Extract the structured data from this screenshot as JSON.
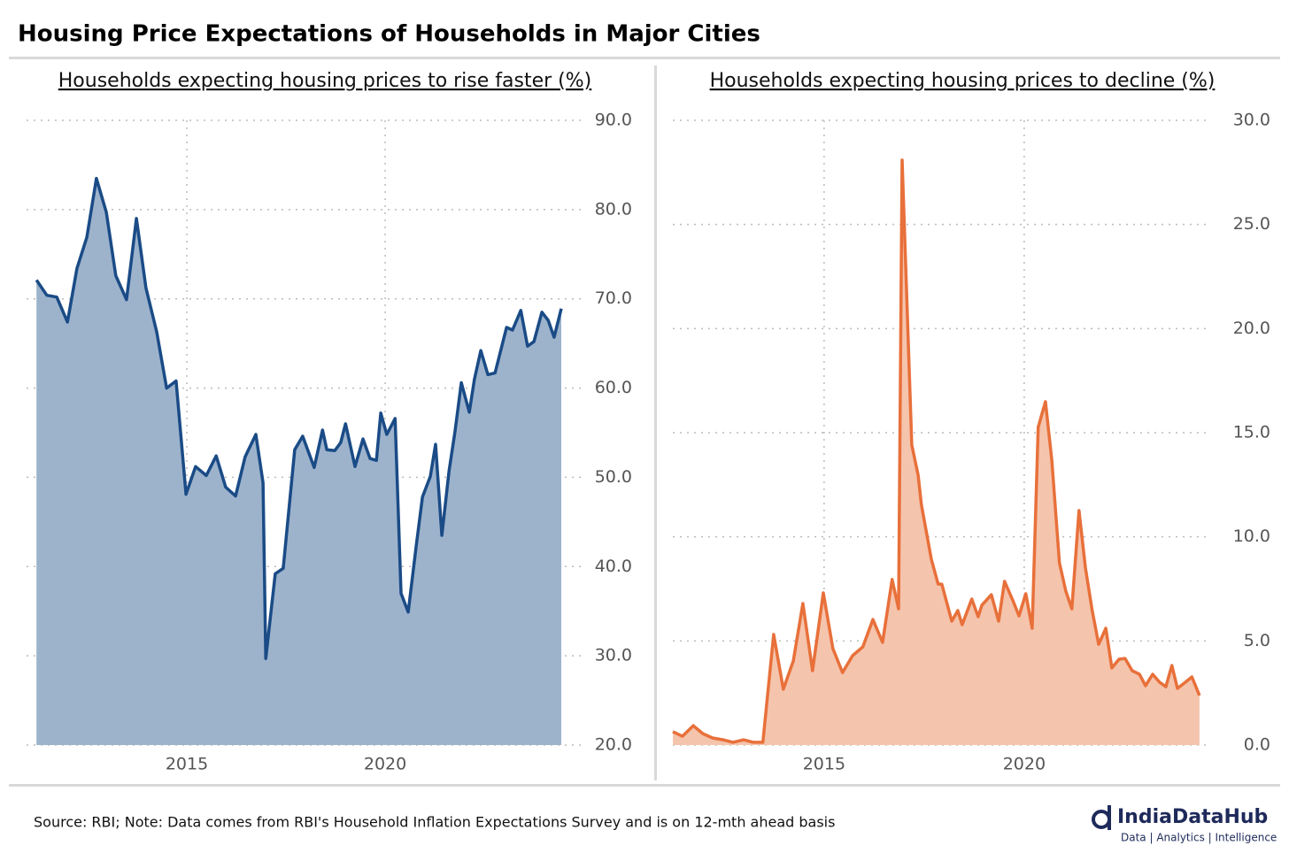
{
  "title": "Housing Price Expectations of Households in Major Cities",
  "source": "Source: RBI; Note: Data comes from RBI's Household Inflation Expectations Survey and is on 12-mth ahead basis",
  "logo": {
    "name": "IndiaDataHub",
    "tagline": "Data | Analytics | Intelligence"
  },
  "chart_data": [
    {
      "type": "area",
      "title": "Households expecting housing prices to rise faster (%)",
      "color": "#1a4b86",
      "fill_color": "#9db3cc",
      "xlim": [
        2010.96,
        2025.02
      ],
      "xticks": [
        2015,
        2020
      ],
      "ylim": [
        20,
        90
      ],
      "yticks": [
        {
          "value": 20,
          "label": "20.0"
        },
        {
          "value": 30,
          "label": "30.0"
        },
        {
          "value": 40,
          "label": "40.0"
        },
        {
          "value": 50,
          "label": "50.0"
        },
        {
          "value": 60,
          "label": "60.0"
        },
        {
          "value": 70,
          "label": "70.0"
        },
        {
          "value": 80,
          "label": "80.0"
        },
        {
          "value": 90,
          "label": "90.0"
        }
      ],
      "grid": true,
      "x": [
        2011.21,
        2011.47,
        2011.72,
        2011.99,
        2012.23,
        2012.48,
        2012.72,
        2012.97,
        2013.21,
        2013.48,
        2013.73,
        2013.97,
        2014.24,
        2014.49,
        2014.73,
        2014.98,
        2015.22,
        2015.49,
        2015.74,
        2015.98,
        2016.23,
        2016.47,
        2016.74,
        2016.92,
        2016.99,
        2017.23,
        2017.43,
        2017.72,
        2017.92,
        2018.21,
        2018.42,
        2018.53,
        2018.73,
        2018.88,
        2019.0,
        2019.24,
        2019.44,
        2019.62,
        2019.78,
        2019.89,
        2020.04,
        2020.25,
        2020.4,
        2020.58,
        2020.78,
        2020.94,
        2021.14,
        2021.27,
        2021.43,
        2021.61,
        2021.76,
        2021.92,
        2022.12,
        2022.25,
        2022.41,
        2022.59,
        2022.77,
        2023.06,
        2023.21,
        2023.42,
        2023.59,
        2023.75,
        2023.95,
        2024.11,
        2024.26,
        2024.44
      ],
      "values": [
        72.1,
        70.4,
        70.2,
        67.4,
        73.4,
        76.9,
        83.5,
        79.7,
        72.6,
        69.9,
        79.0,
        71.2,
        66.3,
        60.0,
        60.8,
        48.1,
        51.2,
        50.2,
        52.4,
        48.9,
        47.9,
        52.3,
        54.8,
        49.4,
        29.7,
        39.2,
        39.8,
        53.1,
        54.6,
        51.1,
        55.3,
        53.1,
        53.0,
        53.9,
        56.0,
        51.2,
        54.3,
        52.1,
        51.9,
        57.2,
        54.8,
        56.6,
        37.0,
        34.9,
        42.2,
        47.8,
        50.1,
        53.7,
        43.5,
        50.7,
        55.1,
        60.6,
        57.3,
        61.0,
        64.2,
        61.5,
        61.7,
        66.8,
        66.5,
        68.7,
        64.7,
        65.2,
        68.5,
        67.6,
        65.7,
        68.9
      ]
    },
    {
      "type": "area",
      "title": "Households expecting housing prices to decline (%)",
      "color": "#e8703a",
      "fill_color": "#f5c4ad",
      "xlim": [
        2011.22,
        2024.67
      ],
      "xticks": [
        2015,
        2020
      ],
      "ylim": [
        0,
        30
      ],
      "yticks": [
        {
          "value": 0,
          "label": "0.0"
        },
        {
          "value": 5,
          "label": "5.0"
        },
        {
          "value": 10,
          "label": "10.0"
        },
        {
          "value": 15,
          "label": "15.0"
        },
        {
          "value": 20,
          "label": "20.0"
        },
        {
          "value": 25,
          "label": "25.0"
        },
        {
          "value": 30,
          "label": "30.0"
        }
      ],
      "grid": true,
      "x": [
        2011.22,
        2011.46,
        2011.73,
        2011.97,
        2012.21,
        2012.48,
        2012.72,
        2012.99,
        2013.23,
        2013.47,
        2013.74,
        2013.98,
        2014.23,
        2014.47,
        2014.71,
        2014.98,
        2015.22,
        2015.46,
        2015.71,
        2015.97,
        2016.22,
        2016.46,
        2016.7,
        2016.86,
        2016.95,
        2017.19,
        2017.35,
        2017.43,
        2017.68,
        2017.85,
        2017.94,
        2018.19,
        2018.34,
        2018.45,
        2018.69,
        2018.85,
        2018.94,
        2019.18,
        2019.36,
        2019.51,
        2019.73,
        2019.87,
        2020.04,
        2020.2,
        2020.35,
        2020.53,
        2020.69,
        2020.88,
        2021.04,
        2021.19,
        2021.37,
        2021.53,
        2021.7,
        2021.86,
        2022.04,
        2022.19,
        2022.37,
        2022.52,
        2022.7,
        2022.88,
        2023.03,
        2023.21,
        2023.38,
        2023.54,
        2023.69,
        2023.83,
        2024.03,
        2024.19,
        2024.38
      ],
      "values": [
        0.64,
        0.42,
        0.93,
        0.55,
        0.34,
        0.25,
        0.13,
        0.25,
        0.13,
        0.13,
        5.31,
        2.68,
        4.04,
        6.8,
        3.57,
        7.31,
        4.63,
        3.48,
        4.29,
        4.72,
        6.03,
        4.93,
        7.95,
        6.54,
        28.09,
        14.41,
        12.96,
        11.56,
        8.92,
        7.73,
        7.73,
        5.95,
        6.46,
        5.78,
        7.01,
        6.16,
        6.71,
        7.22,
        5.95,
        7.86,
        6.88,
        6.2,
        7.27,
        5.61,
        15.26,
        16.49,
        13.68,
        8.75,
        7.39,
        6.54,
        11.26,
        8.5,
        6.46,
        4.84,
        5.61,
        3.7,
        4.12,
        4.16,
        3.57,
        3.4,
        2.85,
        3.4,
        3.02,
        2.8,
        3.82,
        2.72,
        3.02,
        3.27,
        2.38
      ]
    }
  ]
}
